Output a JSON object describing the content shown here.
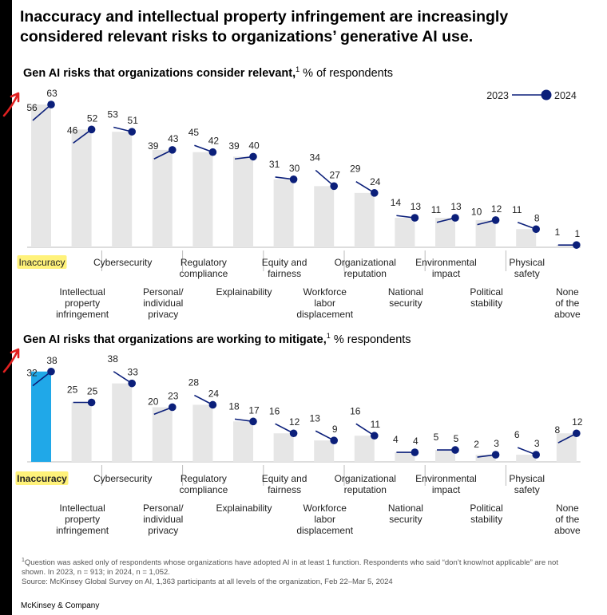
{
  "headline": "Inaccuracy and intellectual property infringement are increasingly considered relevant risks to organizations’ generative AI use.",
  "legend": {
    "from": "2023",
    "to": "2024"
  },
  "colors": {
    "bar": "#e6e6e6",
    "highlight_bar": "#20a8e8",
    "line": "#0b1f7a",
    "highlighter": "#fff27a",
    "annotation": "#e02020"
  },
  "chart_data": [
    {
      "type": "bar",
      "title": "Gen AI risks that organizations consider relevant,",
      "title_suffix": "% of respondents",
      "footnote_marker": "1",
      "categories": [
        "Inaccuracy",
        "Intellectual property infringement",
        "Cybersecurity",
        "Personal/ individual privacy",
        "Regulatory compliance",
        "Explainability",
        "Equity and fairness",
        "Workforce labor displacement",
        "Organizational reputation",
        "National security",
        "Environmental impact",
        "Political stability",
        "Physical safety",
        "None of the above"
      ],
      "series": [
        {
          "name": "2023",
          "values": [
            56,
            46,
            53,
            39,
            45,
            39,
            31,
            34,
            29,
            14,
            11,
            10,
            11,
            1
          ]
        },
        {
          "name": "2024",
          "values": [
            63,
            52,
            51,
            43,
            42,
            40,
            30,
            27,
            24,
            13,
            13,
            12,
            8,
            1
          ]
        }
      ],
      "ylim": [
        0,
        63
      ],
      "highlight_category": "Inaccuracy"
    },
    {
      "type": "bar",
      "title": "Gen AI risks that organizations are working to mitigate,",
      "title_suffix": "% respondents",
      "footnote_marker": "1",
      "categories": [
        "Inaccuracy",
        "Intellectual property infringement",
        "Cybersecurity",
        "Personal/ individual privacy",
        "Regulatory compliance",
        "Explainability",
        "Equity and fairness",
        "Workforce labor displacement",
        "Organizational reputation",
        "National security",
        "Environmental impact",
        "Political stability",
        "Physical safety",
        "None of the above"
      ],
      "series": [
        {
          "name": "2023",
          "values": [
            32,
            25,
            38,
            20,
            28,
            18,
            16,
            13,
            16,
            4,
            5,
            2,
            6,
            8
          ]
        },
        {
          "name": "2024",
          "values": [
            38,
            25,
            33,
            23,
            24,
            17,
            12,
            9,
            11,
            4,
            5,
            3,
            3,
            12
          ]
        }
      ],
      "ylim": [
        0,
        38
      ],
      "highlight_category": "Inaccuracy"
    }
  ],
  "footnote": "Question was asked only of respondents whose organizations have adopted AI in at least 1 function. Respondents who said “don’t know/not applicable” are not shown. In 2023, n = 913; in 2024, n = 1,052.",
  "source": "Source: McKinsey Global Survey on AI, 1,363 participants at all levels of the organization, Feb 22–Mar 5, 2024",
  "brand": "McKinsey & Company"
}
